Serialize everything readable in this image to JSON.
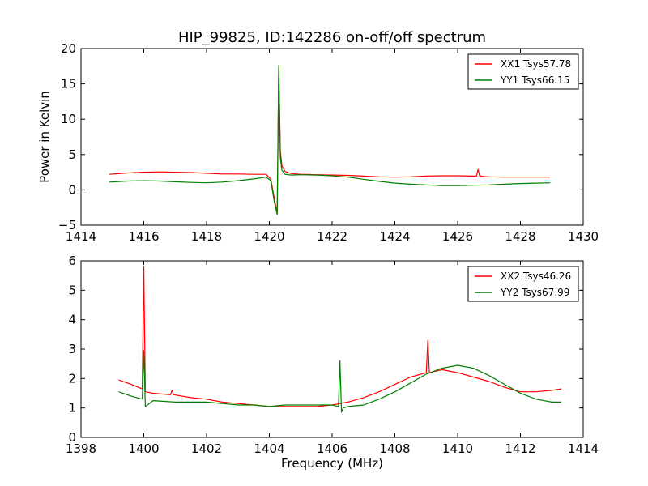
{
  "figure": {
    "title": "HIP_99825, ID:142286 on-off/off spectrum",
    "colors": {
      "red": "#ff0000",
      "green": "#008000",
      "frame": "#000000",
      "background": "#ffffff"
    }
  },
  "chart_data": [
    {
      "type": "line",
      "title": "HIP_99825, ID:142286 on-off/off spectrum",
      "xlabel": "",
      "ylabel": "Power in Kelvin",
      "xlim": [
        1414,
        1430
      ],
      "ylim": [
        -5,
        20
      ],
      "xticks": [
        "1414",
        "1416",
        "1418",
        "1420",
        "1422",
        "1424",
        "1426",
        "1428",
        "1430"
      ],
      "yticks": [
        "−5",
        "0",
        "5",
        "10",
        "15",
        "20"
      ],
      "grid": false,
      "legend": "top-right",
      "series": [
        {
          "name": "XX1 Tsys57.78",
          "color": "#ff0000",
          "x": [
            1414.9,
            1415.5,
            1416.0,
            1416.5,
            1417.0,
            1417.5,
            1418.0,
            1418.5,
            1419.0,
            1419.5,
            1419.9,
            1420.05,
            1420.15,
            1420.25,
            1420.3,
            1420.35,
            1420.4,
            1420.5,
            1420.7,
            1421.0,
            1421.5,
            1422.0,
            1422.5,
            1423.0,
            1423.5,
            1424.0,
            1424.5,
            1425.0,
            1425.5,
            1426.0,
            1426.5,
            1426.6,
            1426.65,
            1426.7,
            1426.8,
            1427.0,
            1427.5,
            1428.0,
            1428.5,
            1428.95
          ],
          "y": [
            2.2,
            2.4,
            2.5,
            2.55,
            2.5,
            2.45,
            2.35,
            2.25,
            2.25,
            2.2,
            2.2,
            1.5,
            -1.0,
            -3.4,
            17.5,
            5.5,
            3.4,
            2.6,
            2.3,
            2.2,
            2.15,
            2.1,
            2.05,
            1.95,
            1.85,
            1.8,
            1.85,
            1.95,
            2.0,
            2.0,
            1.95,
            1.95,
            2.9,
            2.0,
            1.9,
            1.85,
            1.8,
            1.8,
            1.8,
            1.8
          ]
        },
        {
          "name": "YY1 Tsys66.15",
          "color": "#008000",
          "x": [
            1414.9,
            1415.5,
            1416.0,
            1416.5,
            1417.0,
            1417.5,
            1418.0,
            1418.5,
            1419.0,
            1419.5,
            1419.9,
            1420.05,
            1420.15,
            1420.25,
            1420.3,
            1420.35,
            1420.4,
            1420.5,
            1420.7,
            1421.0,
            1421.5,
            1422.0,
            1422.5,
            1423.0,
            1423.5,
            1424.0,
            1424.5,
            1425.0,
            1425.5,
            1426.0,
            1426.5,
            1427.0,
            1427.5,
            1428.0,
            1428.5,
            1428.95
          ],
          "y": [
            1.1,
            1.25,
            1.3,
            1.25,
            1.15,
            1.05,
            1.0,
            1.1,
            1.3,
            1.55,
            1.8,
            1.3,
            -1.5,
            -3.5,
            17.6,
            4.5,
            2.8,
            2.2,
            2.1,
            2.15,
            2.1,
            2.0,
            1.8,
            1.5,
            1.2,
            0.95,
            0.8,
            0.7,
            0.6,
            0.6,
            0.65,
            0.7,
            0.8,
            0.9,
            0.95,
            1.0
          ]
        }
      ]
    },
    {
      "type": "line",
      "title": "",
      "xlabel": "Frequency (MHz)",
      "ylabel": "",
      "xlim": [
        1398,
        1414
      ],
      "ylim": [
        0,
        6
      ],
      "xticks": [
        "1398",
        "1400",
        "1402",
        "1404",
        "1406",
        "1408",
        "1410",
        "1412",
        "1414"
      ],
      "yticks": [
        "0",
        "1",
        "2",
        "3",
        "4",
        "5",
        "6"
      ],
      "grid": false,
      "legend": "top-right",
      "series": [
        {
          "name": "XX2 Tsys46.26",
          "color": "#ff0000",
          "x": [
            1399.2,
            1399.6,
            1399.95,
            1400.0,
            1400.05,
            1400.3,
            1400.85,
            1400.9,
            1400.95,
            1401.5,
            1402.0,
            1402.5,
            1403.0,
            1403.5,
            1404.0,
            1404.5,
            1405.0,
            1405.5,
            1406.0,
            1406.5,
            1407.0,
            1407.5,
            1408.0,
            1408.5,
            1409.0,
            1409.05,
            1409.1,
            1409.5,
            1410.0,
            1410.5,
            1411.0,
            1411.5,
            1412.0,
            1412.5,
            1413.0,
            1413.3
          ],
          "y": [
            1.95,
            1.8,
            1.65,
            5.8,
            1.55,
            1.5,
            1.45,
            1.6,
            1.45,
            1.35,
            1.3,
            1.2,
            1.15,
            1.1,
            1.05,
            1.05,
            1.05,
            1.05,
            1.1,
            1.2,
            1.35,
            1.55,
            1.8,
            2.05,
            2.2,
            3.3,
            2.2,
            2.3,
            2.2,
            2.05,
            1.9,
            1.7,
            1.55,
            1.55,
            1.6,
            1.65
          ]
        },
        {
          "name": "YY2 Tsys67.99",
          "color": "#008000",
          "x": [
            1399.2,
            1399.6,
            1399.95,
            1400.0,
            1400.05,
            1400.3,
            1401.0,
            1401.5,
            1402.0,
            1402.5,
            1403.0,
            1403.5,
            1404.0,
            1404.5,
            1405.0,
            1405.5,
            1406.0,
            1406.2,
            1406.25,
            1406.3,
            1406.35,
            1406.5,
            1407.0,
            1407.5,
            1408.0,
            1408.5,
            1409.0,
            1409.5,
            1410.0,
            1410.5,
            1411.0,
            1411.5,
            1412.0,
            1412.5,
            1413.0,
            1413.3
          ],
          "y": [
            1.55,
            1.4,
            1.3,
            2.95,
            1.05,
            1.25,
            1.2,
            1.2,
            1.2,
            1.15,
            1.1,
            1.1,
            1.05,
            1.1,
            1.1,
            1.1,
            1.1,
            1.05,
            2.6,
            0.85,
            1.0,
            1.05,
            1.1,
            1.3,
            1.55,
            1.85,
            2.15,
            2.35,
            2.45,
            2.35,
            2.1,
            1.8,
            1.5,
            1.3,
            1.2,
            1.2
          ]
        }
      ]
    }
  ]
}
